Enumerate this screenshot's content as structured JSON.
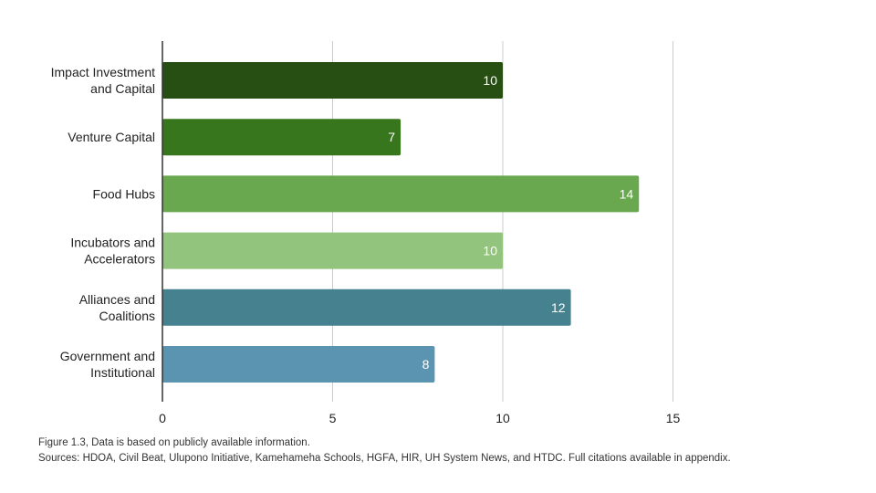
{
  "chart_data": {
    "type": "bar",
    "orientation": "horizontal",
    "categories": [
      [
        "Impact Investment",
        "and Capital"
      ],
      [
        "Venture Capital"
      ],
      [
        "Food Hubs"
      ],
      [
        "Incubators and",
        "Accelerators"
      ],
      [
        "Alliances and",
        "Coalitions"
      ],
      [
        "Government and",
        "Institutional"
      ]
    ],
    "values": [
      10,
      7,
      14,
      10,
      12,
      8
    ],
    "colors": [
      "#274e13",
      "#38761d",
      "#6aa84f",
      "#93c47d",
      "#45818e",
      "#5a94b0"
    ],
    "xlim": [
      0,
      20
    ],
    "xticks": [
      0,
      5,
      10,
      15
    ],
    "grid": true,
    "legend": "none",
    "title": "",
    "xlabel": "",
    "ylabel": ""
  },
  "caption": {
    "line1": "Figure 1.3, Data is based on publicly available information.",
    "line2": "Sources: HDOA, Civil Beat, Ulupono Initiative, Kamehameha Schools, HGFA, HIR, UH System News, and HTDC. Full citations available in appendix."
  }
}
